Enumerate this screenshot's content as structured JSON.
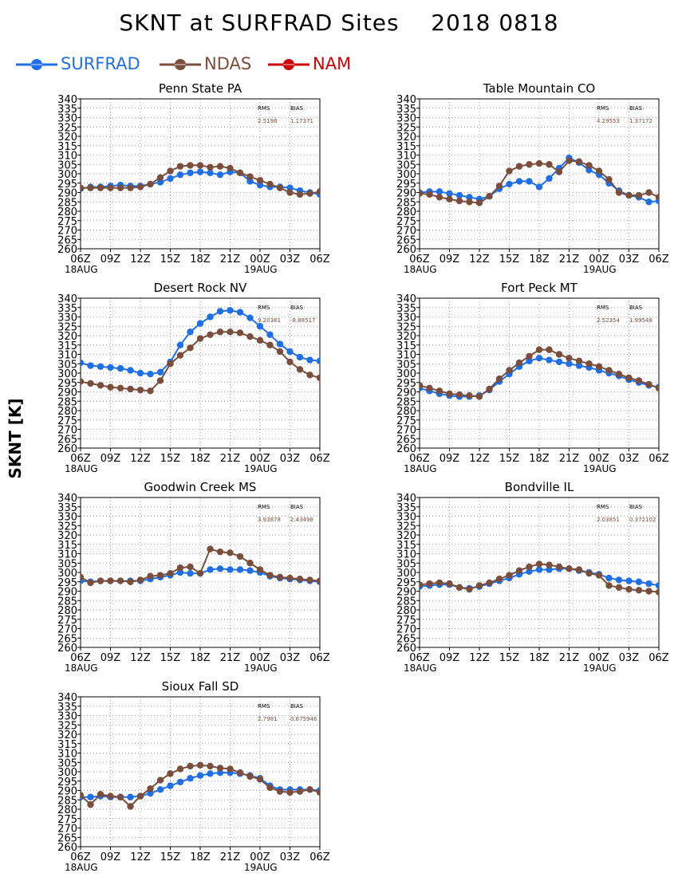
{
  "title": "SKNT at SURFRAD Sites    2018 0818",
  "ylabel": "SKNT [K]",
  "legend": [
    {
      "name": "SURFRAD",
      "color": "#1f6fe6"
    },
    {
      "name": "NDAS",
      "color": "#7a4d3c"
    },
    {
      "name": "NAM",
      "color": "#cc0000"
    }
  ],
  "stats_labels": {
    "rms": "RMS",
    "bias": "BIAS"
  },
  "axis": {
    "x_ticks": [
      "06Z",
      "09Z",
      "12Z",
      "15Z",
      "18Z",
      "21Z",
      "00Z",
      "03Z",
      "06Z"
    ],
    "x_dates": [
      "18AUG",
      "19AUG"
    ],
    "y_ticks": [
      260,
      265,
      270,
      275,
      280,
      285,
      290,
      295,
      300,
      305,
      310,
      315,
      320,
      325,
      330,
      335,
      340
    ],
    "ylim": [
      260,
      340
    ],
    "xlim_hours": [
      0,
      24
    ],
    "grid": true
  },
  "chart_data": [
    {
      "type": "line",
      "title": "Penn State PA",
      "rms": "2.5198",
      "bias": "1.17371",
      "x": [
        0,
        1,
        2,
        3,
        4,
        5,
        6,
        7,
        8,
        9,
        10,
        11,
        12,
        13,
        14,
        15,
        16,
        17,
        18,
        19,
        20,
        21,
        22,
        23,
        24
      ],
      "series": [
        {
          "name": "SURFRAD",
          "values": [
            292,
            293,
            293,
            293.5,
            294,
            293.5,
            293.5,
            294.5,
            295.5,
            297.5,
            299.5,
            300.5,
            301,
            300.5,
            299.5,
            301,
            300.5,
            296,
            294,
            293,
            293,
            292.5,
            291,
            290,
            289
          ]
        },
        {
          "name": "NDAS",
          "values": [
            292.5,
            292.5,
            292.5,
            292.5,
            292.5,
            292.5,
            293,
            294.5,
            298,
            301.5,
            304,
            304.5,
            304.5,
            303.5,
            304,
            303,
            300.5,
            298.5,
            296.5,
            294.5,
            292.5,
            290,
            289,
            289.5,
            290.5
          ]
        }
      ]
    },
    {
      "type": "line",
      "title": "Table Mountain CO",
      "rms": "4.29553",
      "bias": "1.37172",
      "x": [
        0,
        1,
        2,
        3,
        4,
        5,
        6,
        7,
        8,
        9,
        10,
        11,
        12,
        13,
        14,
        15,
        16,
        17,
        18,
        19,
        20,
        21,
        22,
        23,
        24
      ],
      "series": [
        {
          "name": "SURFRAD",
          "values": [
            290,
            290.5,
            290.5,
            289.5,
            288.5,
            287.5,
            286.5,
            288,
            292,
            294.5,
            296,
            296,
            293,
            297.5,
            303,
            308.5,
            306,
            302,
            299.5,
            295,
            291,
            288.5,
            287.5,
            285,
            285.5
          ]
        },
        {
          "name": "NDAS",
          "values": [
            289.5,
            289,
            287.5,
            286.5,
            285.5,
            285,
            284.5,
            288,
            293.5,
            301.5,
            304,
            305,
            305.5,
            305,
            301,
            307,
            306.5,
            304.5,
            301.5,
            297,
            290,
            288.5,
            288.5,
            290,
            287.5
          ]
        }
      ]
    },
    {
      "type": "line",
      "title": "Desert Rock NV",
      "rms": "9.20381",
      "bias": "-8.88517",
      "x": [
        0,
        1,
        2,
        3,
        4,
        5,
        6,
        7,
        8,
        9,
        10,
        11,
        12,
        13,
        14,
        15,
        16,
        17,
        18,
        19,
        20,
        21,
        22,
        23,
        24
      ],
      "series": [
        {
          "name": "SURFRAD",
          "values": [
            305.5,
            304,
            303.5,
            303,
            302.5,
            301.5,
            300,
            299.5,
            300.5,
            306,
            315,
            322,
            326.5,
            330,
            333,
            333.5,
            332.5,
            329.5,
            325,
            320.5,
            315.5,
            311.5,
            308.5,
            307,
            306.5
          ]
        },
        {
          "name": "NDAS",
          "values": [
            295.5,
            294.5,
            293.5,
            292.5,
            292,
            291.5,
            291,
            290.5,
            296,
            305,
            309.5,
            313.5,
            318.5,
            320.5,
            322,
            322,
            321.5,
            319.5,
            317.5,
            315,
            311.5,
            306,
            302,
            299,
            297.5
          ]
        }
      ]
    },
    {
      "type": "line",
      "title": "Fort Peck MT",
      "rms": "2.52354",
      "bias": "1.99548",
      "x": [
        0,
        1,
        2,
        3,
        4,
        5,
        6,
        7,
        8,
        9,
        10,
        11,
        12,
        13,
        14,
        15,
        16,
        17,
        18,
        19,
        20,
        21,
        22,
        23,
        24
      ],
      "series": [
        {
          "name": "SURFRAD",
          "values": [
            292,
            290.5,
            289,
            288,
            287.5,
            287.5,
            288,
            291,
            295.5,
            299.5,
            303.5,
            306.5,
            308,
            307,
            306,
            305,
            304,
            303,
            301.5,
            300,
            298.5,
            296.5,
            295,
            293.5,
            292.5
          ]
        },
        {
          "name": "NDAS",
          "values": [
            293.5,
            292,
            290.5,
            289,
            288.5,
            288,
            287.5,
            291.5,
            297,
            301.5,
            305.5,
            309,
            312.5,
            312.5,
            310,
            308,
            306.5,
            305,
            303.5,
            301.5,
            299.5,
            297.5,
            296,
            294,
            292
          ]
        }
      ]
    },
    {
      "type": "line",
      "title": "Goodwin Creek MS",
      "rms": "3.93878",
      "bias": "2.43498",
      "x": [
        0,
        1,
        2,
        3,
        4,
        5,
        6,
        7,
        8,
        9,
        10,
        11,
        12,
        13,
        14,
        15,
        16,
        17,
        18,
        19,
        20,
        21,
        22,
        23,
        24
      ],
      "series": [
        {
          "name": "SURFRAD",
          "values": [
            295.5,
            295,
            295.5,
            295.5,
            295.5,
            295.5,
            295.5,
            296.5,
            297.5,
            298.5,
            300,
            299.5,
            299.5,
            301.5,
            302,
            301.5,
            301.5,
            301,
            300,
            298,
            297,
            296.5,
            296,
            295.5,
            295
          ]
        },
        {
          "name": "NDAS",
          "values": [
            297.5,
            294.5,
            295.5,
            295.5,
            295.5,
            295,
            296,
            298,
            298.5,
            299.5,
            302.5,
            303,
            299.5,
            312.5,
            311,
            310.5,
            308.5,
            305,
            301.5,
            298.5,
            297.5,
            297,
            296.5,
            296,
            295.5
          ]
        }
      ]
    },
    {
      "type": "line",
      "title": "Bondville IL",
      "rms": "2.03851",
      "bias": "0.372102",
      "x": [
        0,
        1,
        2,
        3,
        4,
        5,
        6,
        7,
        8,
        9,
        10,
        11,
        12,
        13,
        14,
        15,
        16,
        17,
        18,
        19,
        20,
        21,
        22,
        23,
        24
      ],
      "series": [
        {
          "name": "SURFRAD",
          "values": [
            292.5,
            293,
            293.5,
            293.5,
            292,
            291.5,
            292.5,
            294,
            295.5,
            297,
            299,
            300.5,
            301.5,
            301.5,
            302,
            302,
            301,
            300,
            299,
            297,
            296,
            295.5,
            295,
            294,
            293
          ]
        },
        {
          "name": "NDAS",
          "values": [
            293.5,
            294,
            294.5,
            294,
            292,
            291,
            293,
            294.5,
            296.5,
            298.5,
            301,
            303,
            304.5,
            304,
            303,
            302,
            301.5,
            299.5,
            298.5,
            293,
            292,
            291,
            290.5,
            290,
            289.5
          ]
        }
      ]
    },
    {
      "type": "line",
      "title": "Sioux Fall SD",
      "rms": "2.7981",
      "bias": "0.875946",
      "x": [
        0,
        1,
        2,
        3,
        4,
        5,
        6,
        7,
        8,
        9,
        10,
        11,
        12,
        13,
        14,
        15,
        16,
        17,
        18,
        19,
        20,
        21,
        22,
        23,
        24
      ],
      "series": [
        {
          "name": "SURFRAD",
          "values": [
            286.5,
            286.5,
            287,
            286.5,
            286.5,
            286.5,
            287,
            288.5,
            290.5,
            292.5,
            294.5,
            296.5,
            298,
            299,
            299.5,
            299.5,
            299,
            298,
            296.5,
            292.5,
            290.5,
            290.5,
            290.5,
            290.5,
            290
          ]
        },
        {
          "name": "NDAS",
          "values": [
            287.5,
            282.5,
            288,
            287,
            286.5,
            281.5,
            287,
            291,
            295.5,
            299,
            301.5,
            303,
            303.5,
            303,
            302,
            301.5,
            299.5,
            297.5,
            296,
            291.5,
            289.5,
            289,
            289.5,
            290.5,
            289
          ]
        }
      ]
    }
  ]
}
